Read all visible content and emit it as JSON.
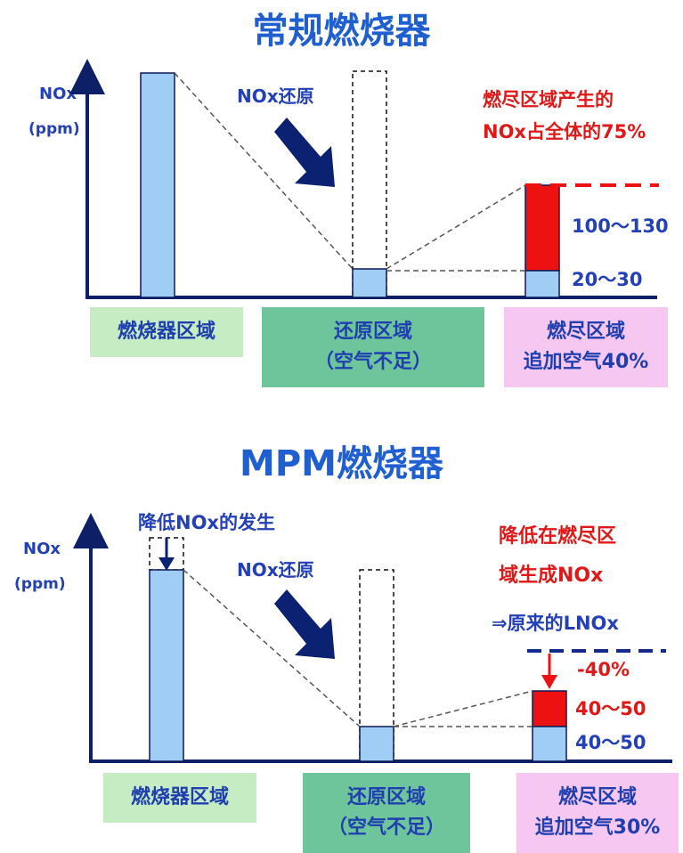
{
  "colors": {
    "axis": "#0d1f66",
    "bar_blue": "#9fcdf4",
    "bar_red": "#ee1111",
    "title_blue": "#1f5fd0",
    "label_blue": "#2340b6",
    "label_red": "#e01818",
    "arrow_navy": "#0b2272",
    "zone_burner": "#c6ecc4",
    "zone_reduction": "#6ec49b",
    "zone_burnout": "#f6c7f0"
  },
  "top": {
    "title": "常规燃烧器",
    "y_label": "NOx",
    "y_unit": "(ppm)",
    "reduction_label": "NOx还原",
    "burnout_note_line1": "燃尽区域产生的",
    "burnout_note_line2": "NOx占全体的75%",
    "value_upper": "100～130",
    "value_lower": "20～30",
    "zones": [
      {
        "line1": "燃烧器区域",
        "line2": ""
      },
      {
        "line1": "还原区域",
        "line2": "（空气不足）"
      },
      {
        "line1": "燃尽区域",
        "line2": "追加空气40%"
      }
    ]
  },
  "bottom": {
    "title": "MPM燃烧器",
    "y_label": "NOx",
    "y_unit": "(ppm)",
    "reduce_generation_label": "降低NOx的发生",
    "reduction_label": "NOx还原",
    "burnout_note_line1": "降低在燃尽区",
    "burnout_note_line2": "域生成NOx",
    "result_note": "⇒原来的LNOx",
    "value_change": "-40%",
    "value_upper": "40～50",
    "value_lower": "40～50",
    "zones": [
      {
        "line1": "燃烧器区域",
        "line2": ""
      },
      {
        "line1": "还原区域",
        "line2": "（空气不足）"
      },
      {
        "line1": "燃尽区域",
        "line2": "追加空气30%"
      }
    ]
  }
}
